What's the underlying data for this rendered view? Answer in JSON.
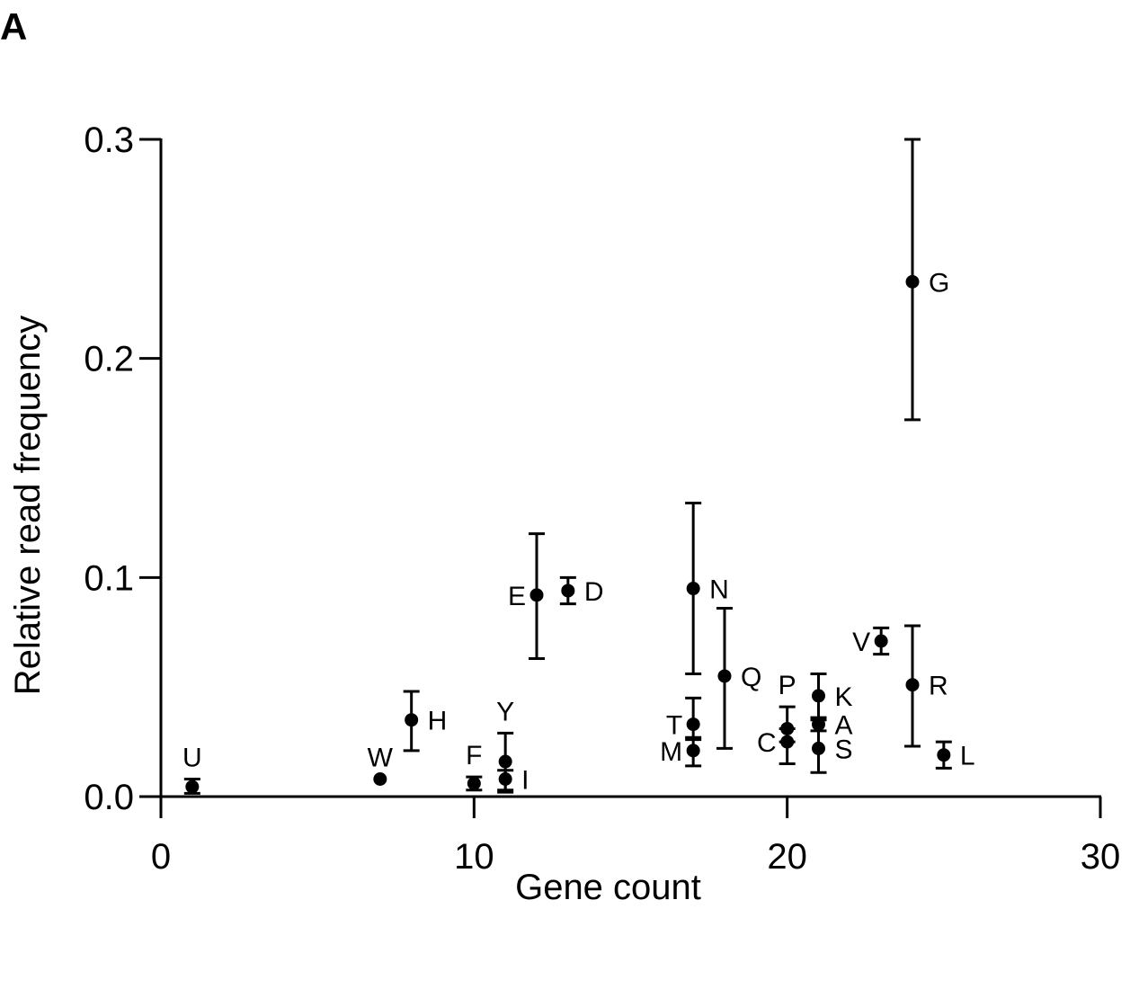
{
  "panel_label": "A",
  "chart_data": {
    "type": "scatter",
    "title": "",
    "xlabel": "Gene count",
    "ylabel": "Relative read frequency",
    "xlim": [
      0,
      30
    ],
    "ylim": [
      0,
      0.3
    ],
    "xticks": [
      0,
      10,
      20,
      30
    ],
    "xtick_labels": [
      "0",
      "10",
      "20",
      "30"
    ],
    "yticks": [
      0.0,
      0.1,
      0.2,
      0.3
    ],
    "ytick_labels": [
      "0.0",
      "0.1",
      "0.2",
      "0.3"
    ],
    "grid": false,
    "legend": false,
    "points": [
      {
        "label": "U",
        "x": 1,
        "y": 0.0045,
        "err_low": 0.0015,
        "err_high": 0.008,
        "label_pos": "above"
      },
      {
        "label": "W",
        "x": 7,
        "y": 0.008,
        "err_low": null,
        "err_high": null,
        "label_pos": "above"
      },
      {
        "label": "H",
        "x": 8,
        "y": 0.035,
        "err_low": 0.021,
        "err_high": 0.048,
        "label_pos": "right"
      },
      {
        "label": "F",
        "x": 10,
        "y": 0.006,
        "err_low": 0.003,
        "err_high": 0.009,
        "label_pos": "above"
      },
      {
        "label": "Y",
        "x": 11,
        "y": 0.016,
        "err_low": 0.003,
        "err_high": 0.029,
        "label_pos": "above"
      },
      {
        "label": "I",
        "x": 11,
        "y": 0.008,
        "err_low": 0.002,
        "err_high": 0.012,
        "label_pos": "right"
      },
      {
        "label": "E",
        "x": 12,
        "y": 0.092,
        "err_low": 0.063,
        "err_high": 0.12,
        "label_pos": "left"
      },
      {
        "label": "D",
        "x": 13,
        "y": 0.094,
        "err_low": 0.088,
        "err_high": 0.1,
        "label_pos": "right"
      },
      {
        "label": "N",
        "x": 17,
        "y": 0.095,
        "err_low": 0.056,
        "err_high": 0.134,
        "label_pos": "right"
      },
      {
        "label": "T",
        "x": 17,
        "y": 0.033,
        "err_low": 0.026,
        "err_high": 0.045,
        "label_pos": "left"
      },
      {
        "label": "M",
        "x": 17,
        "y": 0.021,
        "err_low": 0.014,
        "err_high": 0.027,
        "label_pos": "left"
      },
      {
        "label": "Q",
        "x": 18,
        "y": 0.055,
        "err_low": 0.022,
        "err_high": 0.086,
        "label_pos": "right"
      },
      {
        "label": "P",
        "x": 20,
        "y": 0.031,
        "err_low": 0.025,
        "err_high": 0.041,
        "label_pos": "above"
      },
      {
        "label": "C",
        "x": 20,
        "y": 0.025,
        "err_low": 0.015,
        "err_high": 0.031,
        "label_pos": "left"
      },
      {
        "label": "K",
        "x": 21,
        "y": 0.046,
        "err_low": 0.035,
        "err_high": 0.056,
        "label_pos": "right"
      },
      {
        "label": "A",
        "x": 21,
        "y": 0.033,
        "err_low": 0.03,
        "err_high": 0.036,
        "label_pos": "right"
      },
      {
        "label": "S",
        "x": 21,
        "y": 0.022,
        "err_low": 0.011,
        "err_high": 0.036,
        "label_pos": "right"
      },
      {
        "label": "V",
        "x": 23,
        "y": 0.071,
        "err_low": 0.065,
        "err_high": 0.077,
        "label_pos": "left"
      },
      {
        "label": "G",
        "x": 24,
        "y": 0.235,
        "err_low": 0.172,
        "err_high": 0.3,
        "label_pos": "right"
      },
      {
        "label": "R",
        "x": 24,
        "y": 0.051,
        "err_low": 0.023,
        "err_high": 0.078,
        "label_pos": "right"
      },
      {
        "label": "L",
        "x": 25,
        "y": 0.019,
        "err_low": 0.013,
        "err_high": 0.025,
        "label_pos": "right"
      }
    ],
    "colors": {
      "marker": "#000000",
      "axis": "#000000"
    }
  }
}
